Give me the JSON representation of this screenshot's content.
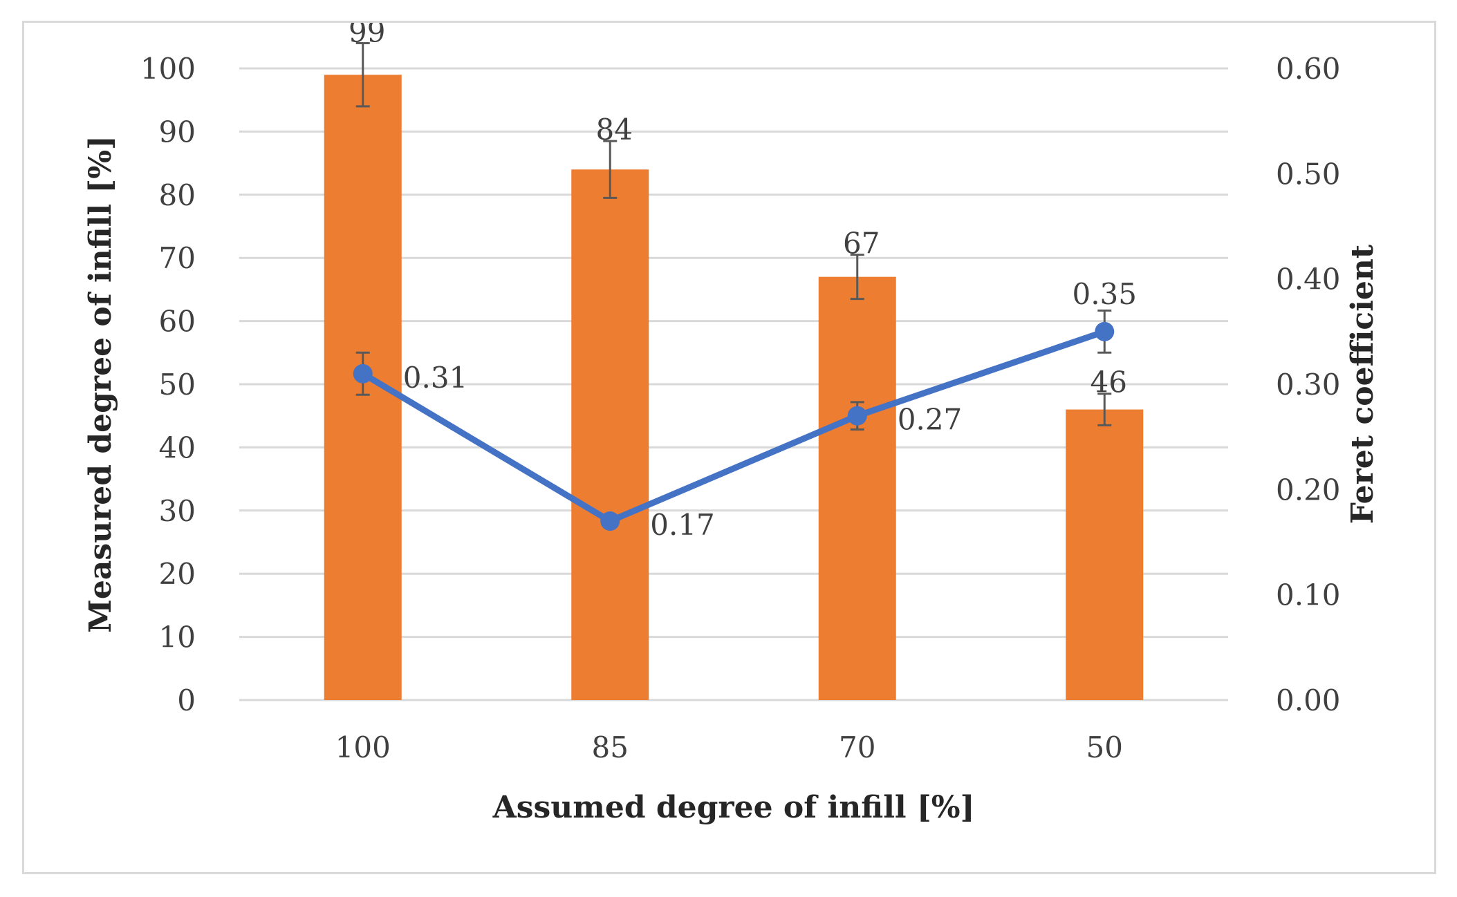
{
  "chart_data": {
    "type": "bar+line",
    "categories": [
      "100",
      "85",
      "70",
      "50"
    ],
    "xlabel": "Assumed degree of infill [%]",
    "ylabel": "Measured degree of infill [%]",
    "y2label": "Feret coefficient",
    "ylim": [
      0,
      100
    ],
    "y2lim": [
      0.0,
      0.6
    ],
    "yticks": [
      "0",
      "10",
      "20",
      "30",
      "40",
      "50",
      "60",
      "70",
      "80",
      "90",
      "100"
    ],
    "y2ticks": [
      "0.00",
      "0.10",
      "0.20",
      "0.30",
      "0.40",
      "0.50",
      "0.60"
    ],
    "grid": true,
    "bar_series": {
      "name": "Measured degree of infill",
      "values": [
        99,
        84,
        67,
        46
      ],
      "errors": [
        5,
        4.5,
        3.5,
        2.5
      ],
      "labels": [
        "99",
        "84",
        "67",
        "46"
      ],
      "color": "#ED7D31"
    },
    "line_series": {
      "name": "Feret coefficient",
      "values": [
        0.31,
        0.17,
        0.27,
        0.35
      ],
      "errors": [
        0.02,
        0.005,
        0.013,
        0.02
      ],
      "labels": [
        "0.31",
        "0.17",
        "0.27",
        "0.35"
      ],
      "color": "#4472C4"
    }
  }
}
